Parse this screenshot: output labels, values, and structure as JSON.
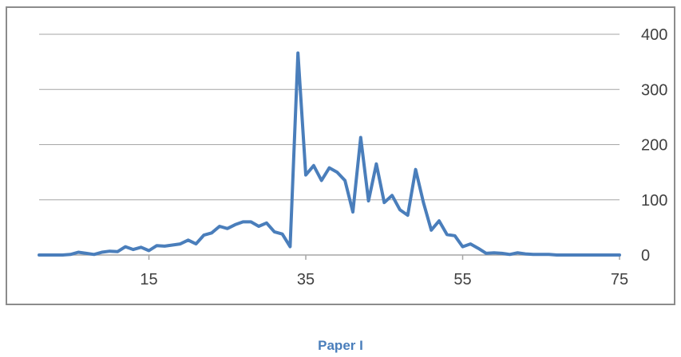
{
  "caption": "Paper I",
  "chart_data": {
    "type": "line",
    "title": "",
    "xlabel": "",
    "ylabel": "",
    "xlim": [
      1,
      75
    ],
    "ylim": [
      0,
      400
    ],
    "x_ticks": [
      15,
      35,
      55,
      75
    ],
    "y_ticks": [
      0,
      100,
      200,
      300,
      400
    ],
    "y_axis_position": "right",
    "grid": "horizontal",
    "legend": "none",
    "line_color": "#4a7ebb",
    "gridline_color": "#a6a6a6",
    "series": [
      {
        "x": [
          1,
          2,
          3,
          4,
          5,
          6,
          7,
          8,
          9,
          10,
          11,
          12,
          13,
          14,
          15,
          16,
          17,
          18,
          19,
          20,
          21,
          22,
          23,
          24,
          25,
          26,
          27,
          28,
          29,
          30,
          31,
          32,
          33,
          34,
          35,
          36,
          37,
          38,
          39,
          40,
          41,
          42,
          43,
          44,
          45,
          46,
          47,
          48,
          49,
          50,
          51,
          52,
          53,
          54,
          55,
          56,
          57,
          58,
          59,
          60,
          61,
          62,
          63,
          64,
          65,
          66,
          67,
          68,
          69,
          70,
          71,
          72,
          73,
          74,
          75
        ],
        "values": [
          0,
          0,
          0,
          0,
          1,
          5,
          3,
          1,
          5,
          7,
          6,
          15,
          10,
          14,
          8,
          17,
          16,
          18,
          20,
          27,
          20,
          36,
          40,
          52,
          48,
          55,
          60,
          60,
          52,
          58,
          42,
          38,
          15,
          366,
          145,
          162,
          135,
          158,
          150,
          135,
          78,
          213,
          98,
          165,
          95,
          108,
          82,
          72,
          155,
          95,
          45,
          62,
          37,
          35,
          15,
          20,
          12,
          3,
          4,
          3,
          1,
          4,
          2,
          1,
          1,
          1,
          0,
          0,
          0,
          0,
          0,
          0,
          0,
          0,
          0
        ]
      }
    ]
  }
}
